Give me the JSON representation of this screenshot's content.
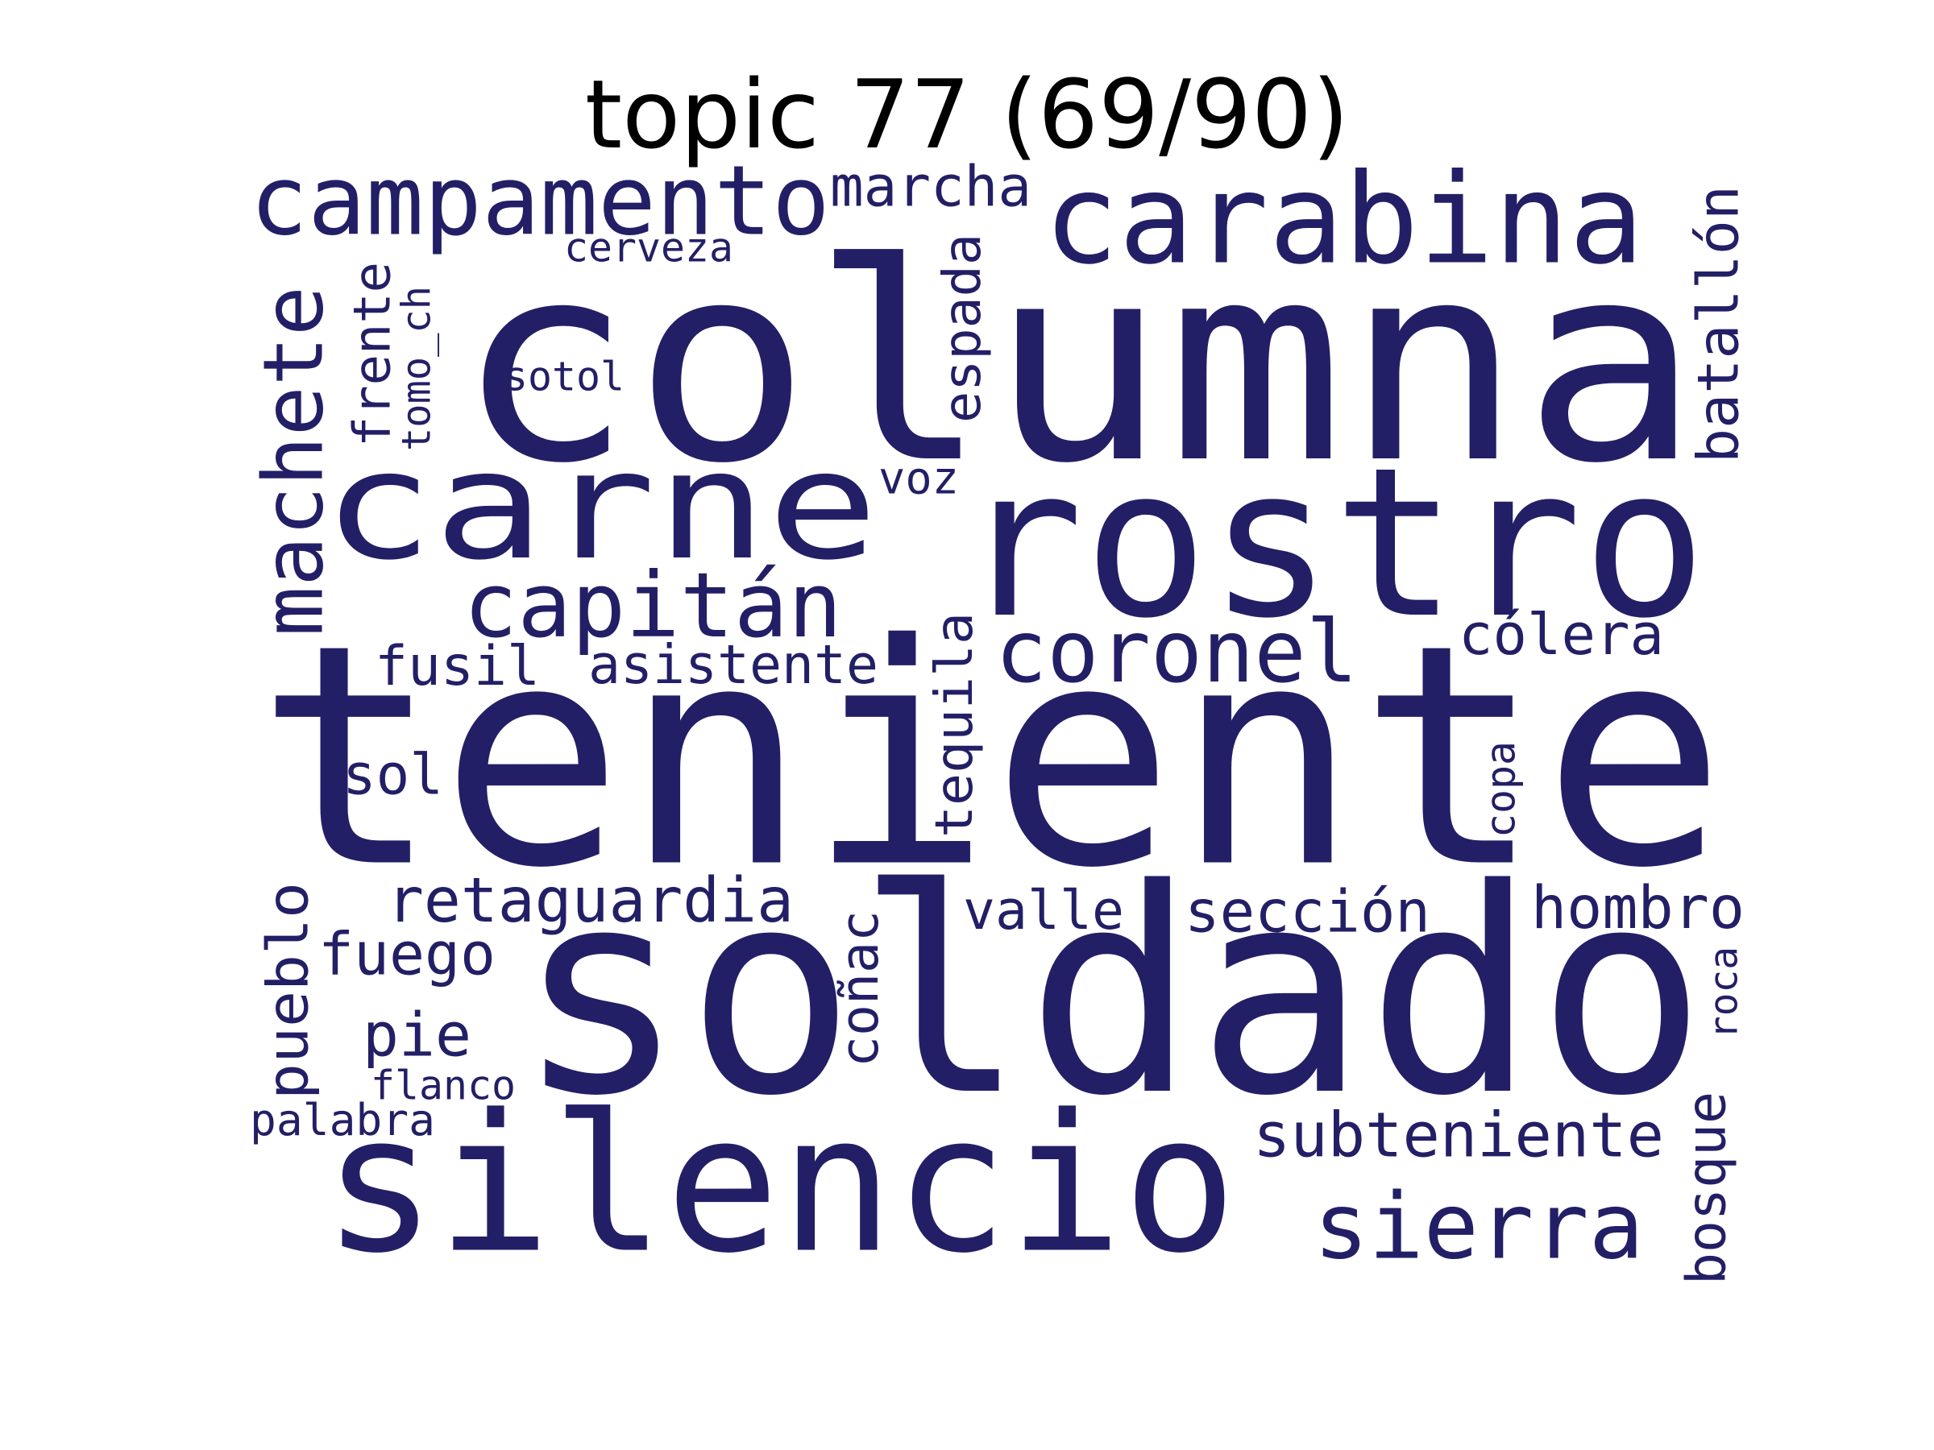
{
  "title": "topic 77 (69/90)",
  "colors": {
    "word": "#231f66",
    "title": "#000000",
    "background": "#ffffff"
  },
  "words": [
    {
      "text": "teniente",
      "rotated": false
    },
    {
      "text": "columna",
      "rotated": false
    },
    {
      "text": "soldado",
      "rotated": false
    },
    {
      "text": "rostro",
      "rotated": false
    },
    {
      "text": "carne",
      "rotated": false
    },
    {
      "text": "silencio",
      "rotated": false
    },
    {
      "text": "carabina",
      "rotated": false
    },
    {
      "text": "campamento",
      "rotated": false
    },
    {
      "text": "capitán",
      "rotated": false
    },
    {
      "text": "coronel",
      "rotated": false
    },
    {
      "text": "sierra",
      "rotated": false
    },
    {
      "text": "machete",
      "rotated": true
    },
    {
      "text": "batallón",
      "rotated": true
    },
    {
      "text": "subteniente",
      "rotated": false
    },
    {
      "text": "retaguardia",
      "rotated": false
    },
    {
      "text": "marcha",
      "rotated": false
    },
    {
      "text": "asistente",
      "rotated": false
    },
    {
      "text": "fusil",
      "rotated": false
    },
    {
      "text": "cólera",
      "rotated": false
    },
    {
      "text": "hombro",
      "rotated": false
    },
    {
      "text": "sección",
      "rotated": false
    },
    {
      "text": "valle",
      "rotated": false
    },
    {
      "text": "fuego",
      "rotated": false
    },
    {
      "text": "pie",
      "rotated": false
    },
    {
      "text": "sol",
      "rotated": false
    },
    {
      "text": "espada",
      "rotated": true
    },
    {
      "text": "tequila",
      "rotated": true
    },
    {
      "text": "coñac",
      "rotated": true
    },
    {
      "text": "pueblo",
      "rotated": true
    },
    {
      "text": "bosque",
      "rotated": true
    },
    {
      "text": "frente",
      "rotated": true
    },
    {
      "text": "cerveza",
      "rotated": false
    },
    {
      "text": "sotol",
      "rotated": false
    },
    {
      "text": "tomo_ch",
      "rotated": true
    },
    {
      "text": "voz",
      "rotated": false
    },
    {
      "text": "flanco",
      "rotated": false
    },
    {
      "text": "palabra",
      "rotated": false
    },
    {
      "text": "copa",
      "rotated": true
    },
    {
      "text": "roca",
      "rotated": true
    }
  ]
}
